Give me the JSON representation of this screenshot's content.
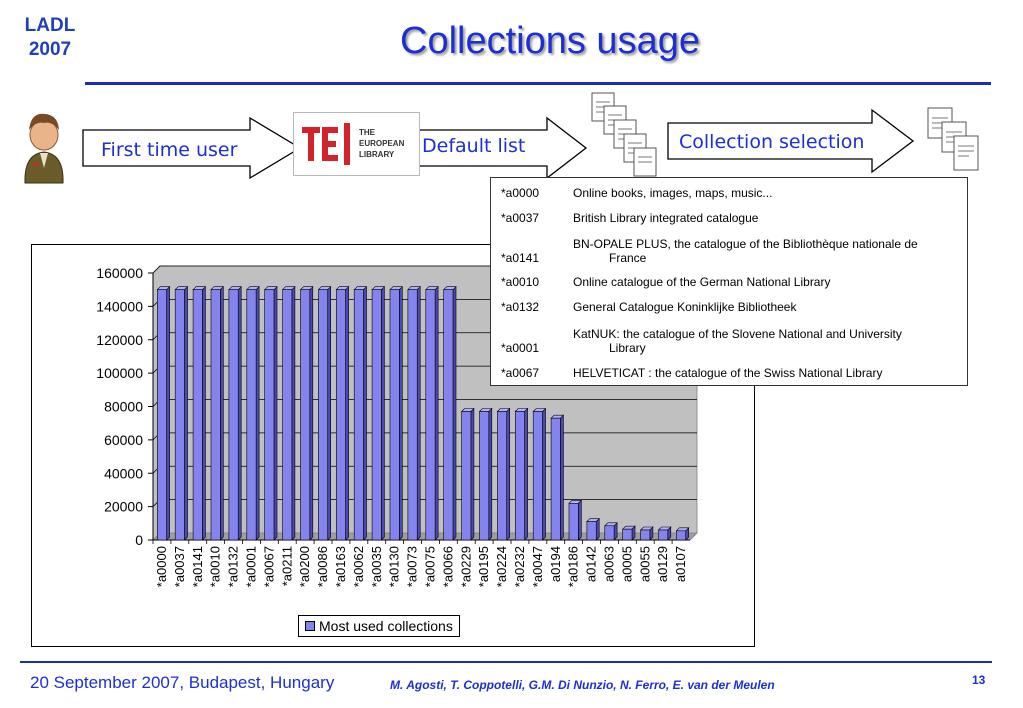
{
  "header": {
    "ladl_line1": "LADL",
    "ladl_line2": "2007",
    "title": "Collections usage"
  },
  "flow": {
    "first_time_user": "First time user",
    "default_list": "Default list",
    "collection_selection": "Collection selection",
    "logo_lines": [
      "THE",
      "EUROPEAN",
      "LIBRARY"
    ],
    "user_icon": "user-avatar-icon",
    "document_icon": "document-stack-icon"
  },
  "table": {
    "rows": [
      {
        "id": "*a0000",
        "desc": "Online books, images, maps, music..."
      },
      {
        "id": "*a0037",
        "desc": "British Library integrated catalogue"
      },
      {
        "id": "*a0141",
        "desc": "BN-OPALE PLUS, the catalogue of the Bibliothèque nationale de",
        "desc2": "France"
      },
      {
        "id": "*a0010",
        "desc": "Online catalogue of the German National Library"
      },
      {
        "id": "*a0132",
        "desc": "General Catalogue Koninklijke Bibliotheek"
      },
      {
        "id": "*a0001",
        "desc": "KatNUK: the catalogue of the Slovene National and University",
        "desc2": "Library"
      },
      {
        "id": "*a0067",
        "desc": "HELVETICAT : the catalogue of the Swiss National Library"
      }
    ]
  },
  "chart_data": {
    "type": "bar",
    "categories": [
      "*a0000",
      "*a0037",
      "*a0141",
      "*a0010",
      "*a0132",
      "*a0001",
      "*a0067",
      "*a0211",
      "*a0200",
      "*a0086",
      "*a0163",
      "*a0062",
      "*a0035",
      "*a0130",
      "*a0073",
      "*a0075",
      "*a0066",
      "*a0229",
      "*a0195",
      "*a0224",
      "*a0232",
      "*a0047",
      "a0194",
      "*a0186",
      "a0142",
      "a0063",
      "a0005",
      "a0055",
      "a0129",
      "a0107"
    ],
    "series": [
      {
        "name": "Most used collections",
        "values": [
          150000,
          150000,
          150000,
          150000,
          150000,
          150000,
          150000,
          150000,
          150000,
          150000,
          150000,
          150000,
          150000,
          150000,
          150000,
          150000,
          150000,
          77000,
          77000,
          77000,
          77000,
          77000,
          73000,
          22000,
          11000,
          8500,
          6500,
          6000,
          6000,
          5500
        ]
      }
    ],
    "ylim": [
      0,
      160000
    ],
    "yticks": [
      "0",
      "20000",
      "40000",
      "60000",
      "80000",
      "100000",
      "120000",
      "140000",
      "160000"
    ],
    "grid": true,
    "legend": "bottom",
    "bar_color": "#8484ee",
    "plot_bg": "#c0c0c0"
  },
  "footer": {
    "date": "20 September 2007, Budapest, Hungary",
    "authors": "M. Agosti, T. Coppotelli, G.M. Di Nunzio, N. Ferro, E. van der Meulen",
    "page": "13"
  },
  "colors": {
    "accent": "#1c2fd6",
    "logo_red": "#d3232a"
  }
}
